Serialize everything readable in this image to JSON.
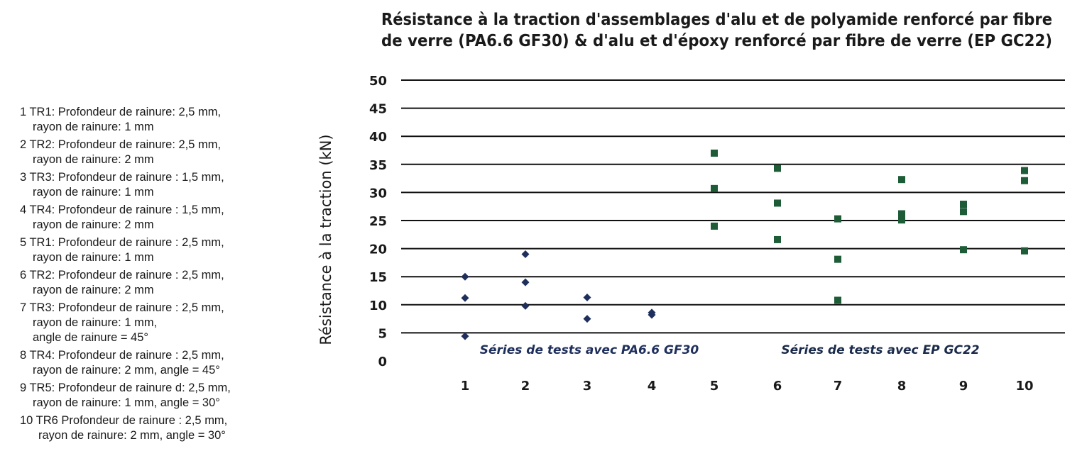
{
  "chart_data": {
    "type": "scatter",
    "title": "Résistance à la traction d'assemblages d'alu et de polyamide renforcé par fibre de verre (PA6.6 GF30) & d'alu et d'époxy renforcé par fibre de verre (EP GC22)",
    "title_lines": [
      "Résistance à la traction d'assemblages d'alu et de polyamide renforcé par fibre",
      "de verre (PA6.6 GF30) & d'alu et d'époxy renforcé par fibre de verre (EP GC22)"
    ],
    "ylabel": "Résistance à la traction (kN)",
    "xlabel": "",
    "ylim": [
      0,
      50
    ],
    "yticks": [
      0,
      5,
      10,
      15,
      20,
      25,
      30,
      35,
      40,
      45,
      50
    ],
    "categories": [
      "1",
      "2",
      "3",
      "4",
      "5",
      "6",
      "7",
      "8",
      "9",
      "10"
    ],
    "grid": true,
    "series": [
      {
        "name": "Séries de tests avec PA6.6 GF30",
        "marker": "diamond",
        "color": "#1f2f5c",
        "points": [
          {
            "x": 1,
            "y": 15
          },
          {
            "x": 1,
            "y": 11.2
          },
          {
            "x": 1,
            "y": 4.4
          },
          {
            "x": 2,
            "y": 19
          },
          {
            "x": 2,
            "y": 14
          },
          {
            "x": 2,
            "y": 9.8
          },
          {
            "x": 3,
            "y": 11.3
          },
          {
            "x": 3,
            "y": 7.5
          },
          {
            "x": 4,
            "y": 8.6
          },
          {
            "x": 4,
            "y": 8.2
          }
        ]
      },
      {
        "name": "Séries de tests avec EP GC22",
        "marker": "square",
        "color": "#1e5c38",
        "points": [
          {
            "x": 5,
            "y": 37
          },
          {
            "x": 5,
            "y": 30.7
          },
          {
            "x": 5,
            "y": 24
          },
          {
            "x": 6,
            "y": 34.3
          },
          {
            "x": 6,
            "y": 28.1
          },
          {
            "x": 6,
            "y": 21.6
          },
          {
            "x": 7,
            "y": 25.3
          },
          {
            "x": 7,
            "y": 18.1
          },
          {
            "x": 7,
            "y": 10.8
          },
          {
            "x": 8,
            "y": 32.3
          },
          {
            "x": 8,
            "y": 26.2
          },
          {
            "x": 8,
            "y": 25.1
          },
          {
            "x": 9,
            "y": 27.9
          },
          {
            "x": 9,
            "y": 26.6
          },
          {
            "x": 9,
            "y": 19.8
          },
          {
            "x": 10,
            "y": 33.9
          },
          {
            "x": 10,
            "y": 32.1
          },
          {
            "x": 10,
            "y": 19.6
          }
        ]
      }
    ],
    "annotations": [
      "Séries de tests avec PA6.6 GF30",
      "Séries de tests avec EP GC22"
    ],
    "legend": [
      {
        "lines": [
          "1 TR1: Profondeur de rainure: 2,5 mm,",
          "rayon de rainure: 1 mm"
        ]
      },
      {
        "lines": [
          "2 TR2: Profondeur de rainure: 2,5 mm,",
          "rayon de rainure: 2 mm"
        ]
      },
      {
        "lines": [
          "3 TR3: Profondeur de rainure : 1,5 mm,",
          "rayon de rainure: 1 mm"
        ]
      },
      {
        "lines": [
          "4 TR4: Profondeur de rainure : 1,5 mm,",
          "rayon de rainure: 2 mm"
        ]
      },
      {
        "lines": [
          "5 TR1: Profondeur de rainure : 2,5 mm,",
          "rayon de rainure: 1 mm"
        ]
      },
      {
        "lines": [
          "6 TR2: Profondeur de rainure : 2,5 mm,",
          "rayon de rainure: 2 mm"
        ]
      },
      {
        "lines": [
          "7 TR3: Profondeur de rainure : 2,5 mm,",
          "rayon de rainure: 1 mm,",
          "angle de rainure = 45°"
        ]
      },
      {
        "lines": [
          "8 TR4: Profondeur de rainure : 2,5 mm,",
          "rayon de rainure: 2 mm, angle = 45°"
        ]
      },
      {
        "lines": [
          "9 TR5: Profondeur de rainure d: 2,5 mm,",
          "rayon de rainure: 1 mm, angle = 30°"
        ]
      },
      {
        "lines": [
          "10 TR6 Profondeur de rainure : 2,5 mm,",
          "rayon de rainure: 2 mm, angle = 30°"
        ]
      }
    ]
  }
}
